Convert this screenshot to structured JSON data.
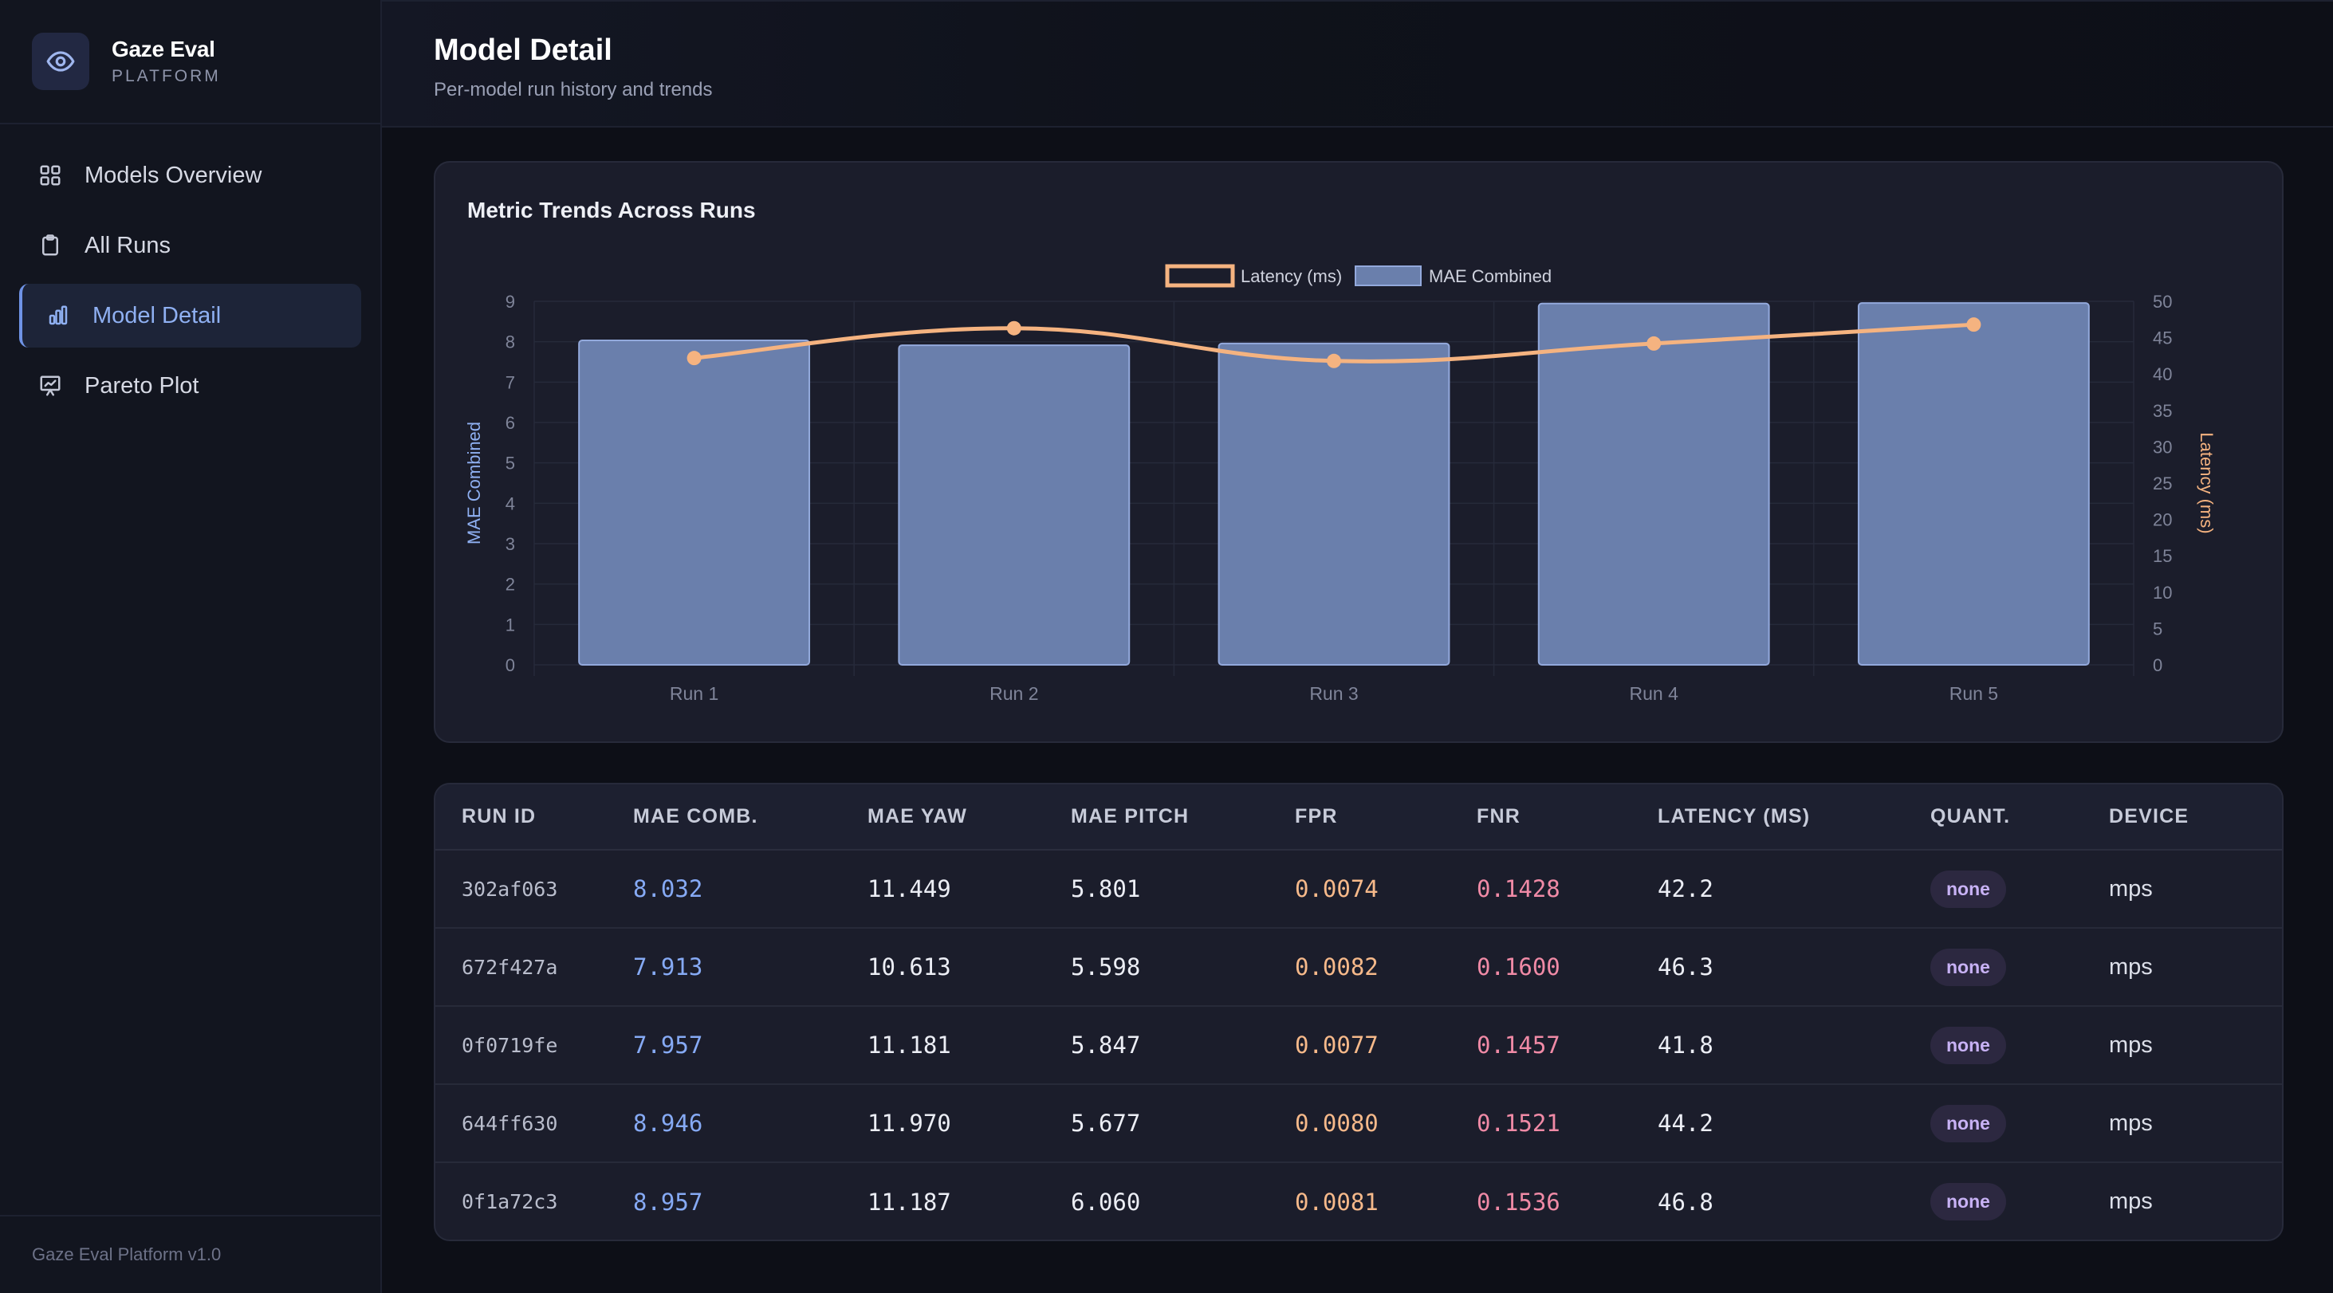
{
  "brand": {
    "name": "Gaze Eval",
    "sub": "PLATFORM",
    "icon": "eye-icon"
  },
  "sidebar": {
    "items": [
      {
        "label": "Models Overview",
        "icon": "grid-icon",
        "active": false
      },
      {
        "label": "All Runs",
        "icon": "clipboard-icon",
        "active": false
      },
      {
        "label": "Model Detail",
        "icon": "bar-chart-icon",
        "active": true
      },
      {
        "label": "Pareto Plot",
        "icon": "presentation-chart-icon",
        "active": false
      }
    ],
    "footer": "Gaze Eval Platform v1.0"
  },
  "header": {
    "title": "Model Detail",
    "subtitle": "Per-model run history and trends"
  },
  "chart_card": {
    "title": "Metric Trends Across Runs"
  },
  "colors": {
    "bar_fill": "#6a7fac",
    "bar_stroke": "#93a9dc",
    "line": "#f5b380",
    "left_axis_label": "#8fb0f2",
    "right_axis_label": "#f5b380",
    "accent": "#6f93e6"
  },
  "chart_data": {
    "type": "bar",
    "categories": [
      "Run 1",
      "Run 2",
      "Run 3",
      "Run 4",
      "Run 5"
    ],
    "series": [
      {
        "name": "MAE Combined",
        "type": "bar",
        "axis": "left",
        "values": [
          8.032,
          7.913,
          7.957,
          8.946,
          8.957
        ]
      },
      {
        "name": "Latency (ms)",
        "type": "line",
        "axis": "right",
        "smooth": true,
        "values": [
          42.2,
          46.3,
          41.8,
          44.2,
          46.8
        ]
      }
    ],
    "legend": [
      "Latency (ms)",
      "MAE Combined"
    ],
    "legend_position": "top-center",
    "ylabel": "MAE Combined",
    "y2label": "Latency (ms)",
    "ylim": [
      0,
      9
    ],
    "y2lim": [
      0,
      50
    ],
    "yticks": [
      "0",
      "1",
      "2",
      "3",
      "4",
      "5",
      "6",
      "7",
      "8",
      "9"
    ],
    "y2ticks": [
      "0",
      "5",
      "10",
      "15",
      "20",
      "25",
      "30",
      "35",
      "40",
      "45",
      "50"
    ],
    "grid": true
  },
  "table": {
    "headers": [
      "RUN ID",
      "MAE COMB.",
      "MAE YAW",
      "MAE PITCH",
      "FPR",
      "FNR",
      "LATENCY (MS)",
      "QUANT.",
      "DEVICE"
    ],
    "rows": [
      [
        "302af063",
        "8.032",
        "11.449",
        "5.801",
        "0.0074",
        "0.1428",
        "42.2",
        "none",
        "mps"
      ],
      [
        "672f427a",
        "7.913",
        "10.613",
        "5.598",
        "0.0082",
        "0.1600",
        "46.3",
        "none",
        "mps"
      ],
      [
        "0f0719fe",
        "7.957",
        "11.181",
        "5.847",
        "0.0077",
        "0.1457",
        "41.8",
        "none",
        "mps"
      ],
      [
        "644ff630",
        "8.946",
        "11.970",
        "5.677",
        "0.0080",
        "0.1521",
        "44.2",
        "none",
        "mps"
      ],
      [
        "0f1a72c3",
        "8.957",
        "11.187",
        "6.060",
        "0.0081",
        "0.1536",
        "46.8",
        "none",
        "mps"
      ]
    ]
  }
}
